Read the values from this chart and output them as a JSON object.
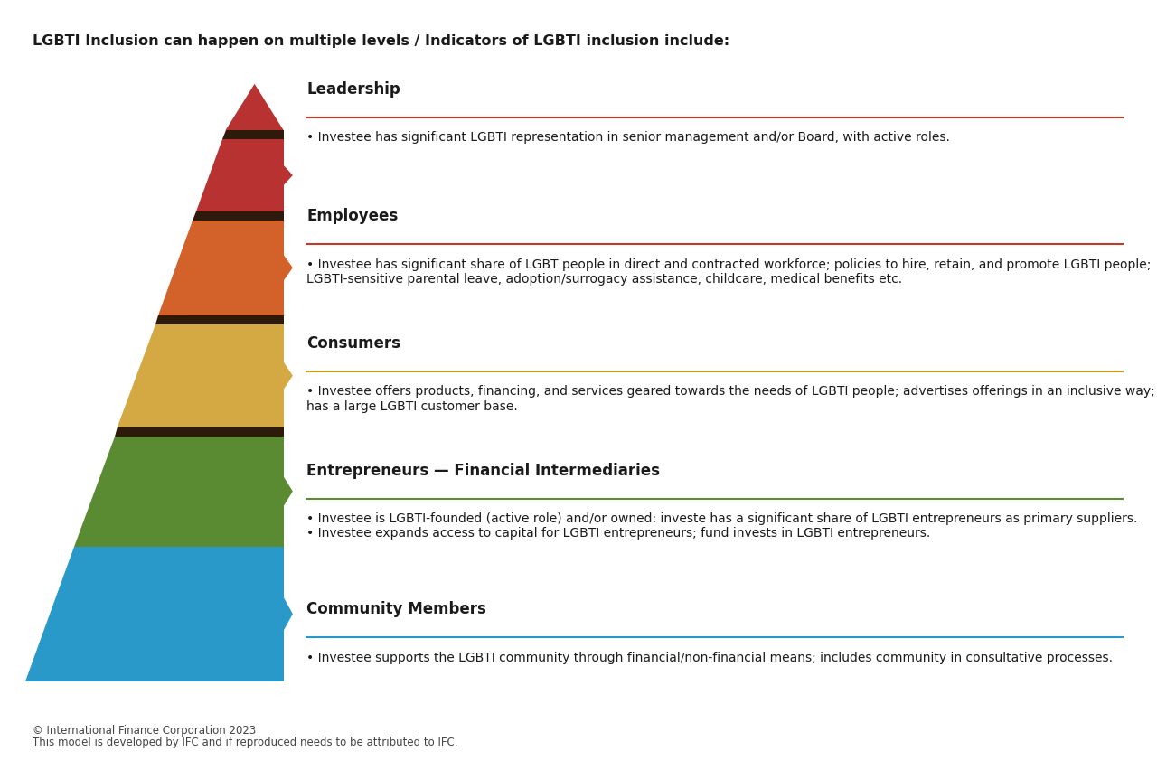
{
  "title": "LGBTI Inclusion can happen on multiple levels / Indicators of LGBTI inclusion include:",
  "footer_line1": "© International Finance Corporation 2023",
  "footer_line2": "This model is developed by IFC and if reproduced needs to be attributed to IFC.",
  "bg_color": "#ffffff",
  "sections": [
    {
      "label": "Leadership",
      "color": "#b83232",
      "dark_color": "#3a1a0a",
      "line_color": "#c0392b",
      "text": "• Investee has significant LGBTI representation in senior management and/or Board, with active roles.",
      "level": 0
    },
    {
      "label": "Employees",
      "color": "#d2622a",
      "dark_color": "#3a1a0a",
      "line_color": "#c0392b",
      "text": "• Investee has significant share of LGBT people in direct and contracted workforce; policies to hire, retain, and promote LGBTI people; LGBTI-sensitive parental leave, adoption/surrogacy assistance, childcare, medical benefits etc.",
      "level": 1
    },
    {
      "label": "Consumers",
      "color": "#d4a843",
      "dark_color": "#3a1a0a",
      "line_color": "#c8a020",
      "text": "• Investee offers products, financing, and services geared towards the needs of LGBTI people; advertises offerings in an inclusive way; has a large LGBTI customer base.",
      "level": 2
    },
    {
      "label": "Entrepreneurs — Financial Intermediaries",
      "color": "#5a8a32",
      "dark_color": "#3a1a0a",
      "line_color": "#5a8a32",
      "text": "• Investee is LGBTI-founded (active role) and/or owned: investe has a significant share of LGBTI entrepreneurs as primary suppliers.\n• Investee expands access to capital for LGBTI entrepreneurs; fund invests in LGBTI entrepreneurs.",
      "level": 3
    },
    {
      "label": "Community Members",
      "color": "#2899c8",
      "dark_color": "#3a1a0a",
      "line_color": "#2899c8",
      "text": "• Investee supports the LGBTI community through financial/non-financial means; includes community in consultative processes.",
      "level": 4
    }
  ]
}
